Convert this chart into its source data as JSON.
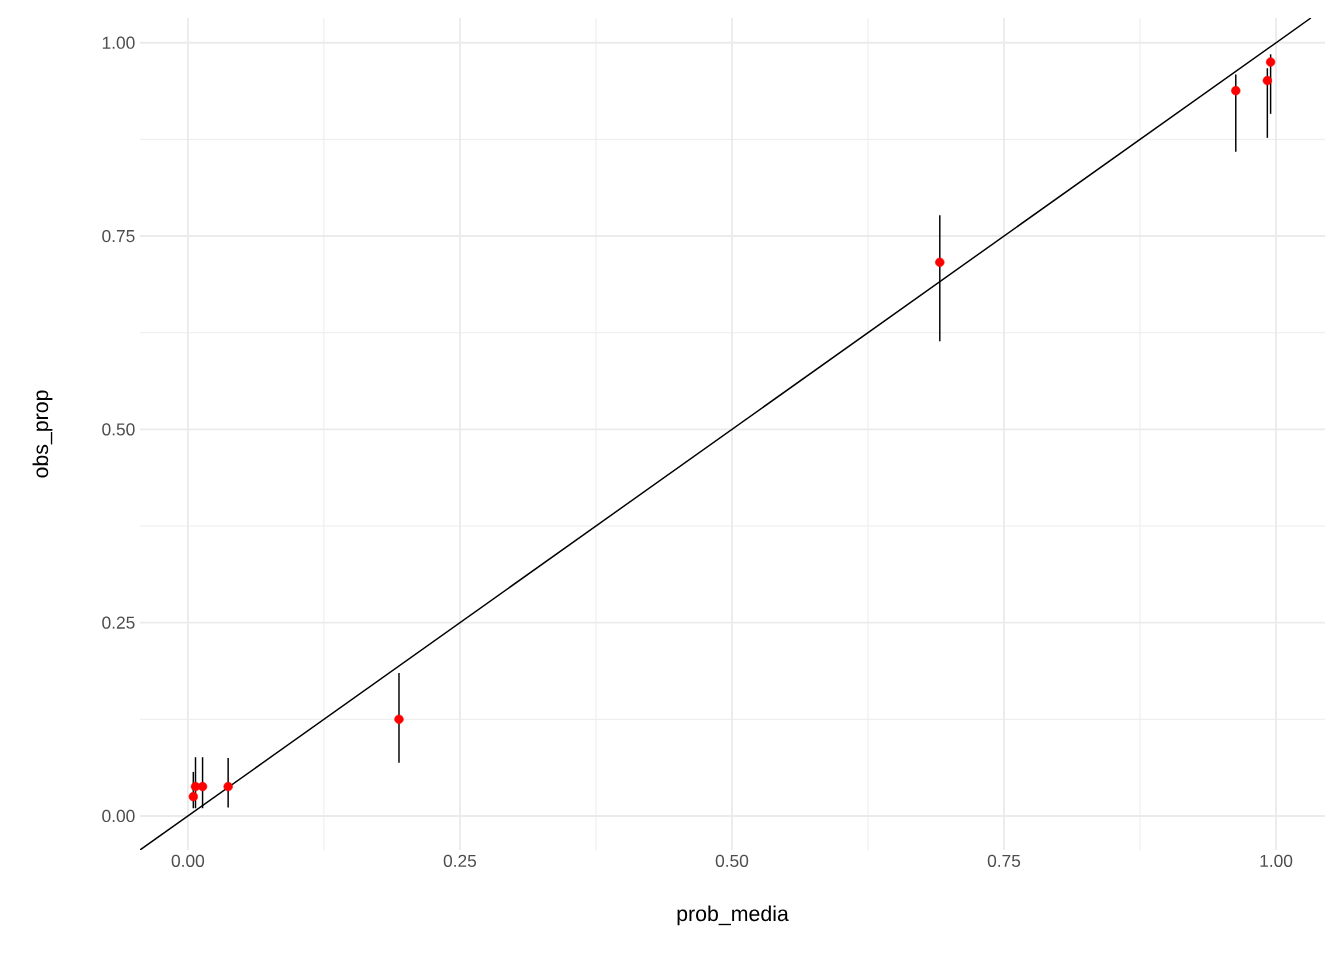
{
  "chart_data": {
    "type": "scatter",
    "xlabel": "prob_media",
    "ylabel": "obs_prop",
    "xlim": [
      -0.044,
      1.045
    ],
    "ylim": [
      -0.044,
      1.032
    ],
    "xticks": [
      {
        "value": 0,
        "label": "0.00"
      },
      {
        "value": 0.25,
        "label": "0.25"
      },
      {
        "value": 0.5,
        "label": "0.50"
      },
      {
        "value": 0.75,
        "label": "0.75"
      },
      {
        "value": 1,
        "label": "1.00"
      }
    ],
    "yticks": [
      {
        "value": 0,
        "label": "0.00"
      },
      {
        "value": 0.25,
        "label": "0.25"
      },
      {
        "value": 0.5,
        "label": "0.50"
      },
      {
        "value": 0.75,
        "label": "0.75"
      },
      {
        "value": 1,
        "label": "1.00"
      }
    ],
    "grid": true,
    "series": [
      {
        "type": "line",
        "color": "#000000",
        "marker": "none",
        "x": [
          -0.044,
          1.032
        ],
        "values": [
          -0.044,
          1.032
        ]
      },
      {
        "color": "#ff0000",
        "marker": "circle",
        "x": [
          0.005,
          0.007,
          0.0135,
          0.037,
          0.194,
          0.691,
          0.963,
          0.992,
          0.995
        ],
        "values": [
          0.025,
          0.038,
          0.038,
          0.038,
          0.125,
          0.716,
          0.938,
          0.951,
          0.975
        ],
        "errors": [
          [
            0.01,
            0.057
          ],
          [
            0.01,
            0.076
          ],
          [
            0.01,
            0.076
          ],
          [
            0.011,
            0.075
          ],
          [
            0.069,
            0.185
          ],
          [
            0.614,
            0.777
          ],
          [
            0.859,
            0.959
          ],
          [
            0.877,
            0.967
          ],
          [
            0.908,
            0.985
          ]
        ]
      }
    ]
  }
}
